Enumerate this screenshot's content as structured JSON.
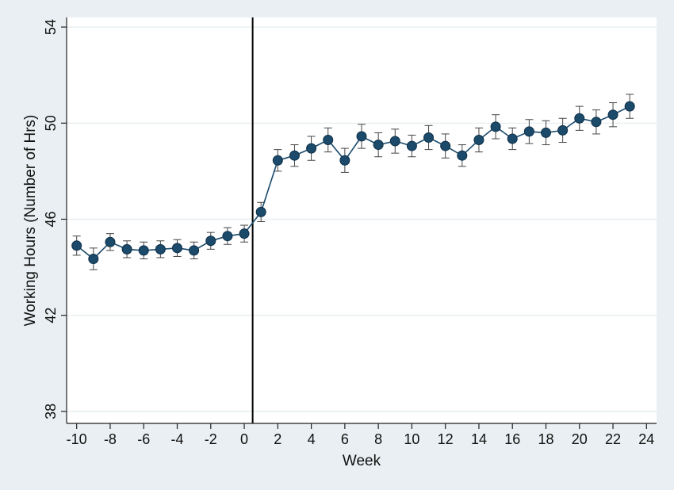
{
  "chart_data": {
    "type": "line",
    "title": "",
    "xlabel": "Week",
    "ylabel": "Working Hours (Number of Hrs)",
    "xlim": [
      -10.6,
      24.6
    ],
    "ylim": [
      37.5,
      54.4
    ],
    "xticks": [
      -10,
      -8,
      -6,
      -4,
      -2,
      0,
      2,
      4,
      6,
      8,
      10,
      12,
      14,
      16,
      18,
      20,
      22,
      24
    ],
    "yticks": [
      38,
      42,
      46,
      50,
      54
    ],
    "grid": "horizontal",
    "vline_x": 0.5,
    "colors": {
      "marker": "#1b4a6b",
      "line": "#1b4a6b",
      "errorbar": "#444444",
      "grid": "#e3ebef",
      "vline": "#000000",
      "plot_bg": "#ffffff",
      "page_bg": "#e9eff2"
    },
    "series": [
      {
        "x": [
          -10,
          -9,
          -8,
          -7,
          -6,
          -5,
          -4,
          -3,
          -2,
          -1,
          0,
          1,
          2,
          3,
          4,
          5,
          6,
          7,
          8,
          9,
          10,
          11,
          12,
          13,
          14,
          15,
          16,
          17,
          18,
          19,
          20,
          21,
          22,
          23
        ],
        "y": [
          44.9,
          44.35,
          45.05,
          44.75,
          44.7,
          44.75,
          44.8,
          44.7,
          45.1,
          45.3,
          45.4,
          46.3,
          48.45,
          48.65,
          48.95,
          49.3,
          48.45,
          49.45,
          49.1,
          49.25,
          49.05,
          49.4,
          49.05,
          48.65,
          49.3,
          49.85,
          49.35,
          49.65,
          49.6,
          49.7,
          50.2,
          50.05,
          50.35,
          50.7
        ],
        "lower": [
          44.5,
          43.9,
          44.7,
          44.4,
          44.35,
          44.4,
          44.45,
          44.35,
          44.75,
          44.95,
          45.05,
          45.9,
          48.0,
          48.2,
          48.45,
          48.8,
          47.95,
          48.95,
          48.6,
          48.75,
          48.6,
          48.9,
          48.55,
          48.2,
          48.8,
          49.35,
          48.9,
          49.15,
          49.1,
          49.2,
          49.7,
          49.55,
          49.85,
          50.2
        ],
        "upper": [
          45.3,
          44.8,
          45.4,
          45.1,
          45.05,
          45.1,
          45.15,
          45.05,
          45.45,
          45.65,
          45.75,
          46.7,
          48.9,
          49.1,
          49.45,
          49.8,
          48.95,
          49.95,
          49.6,
          49.75,
          49.5,
          49.9,
          49.55,
          49.1,
          49.8,
          50.35,
          49.8,
          50.15,
          50.1,
          50.2,
          50.7,
          50.55,
          50.85,
          51.2
        ]
      }
    ]
  }
}
